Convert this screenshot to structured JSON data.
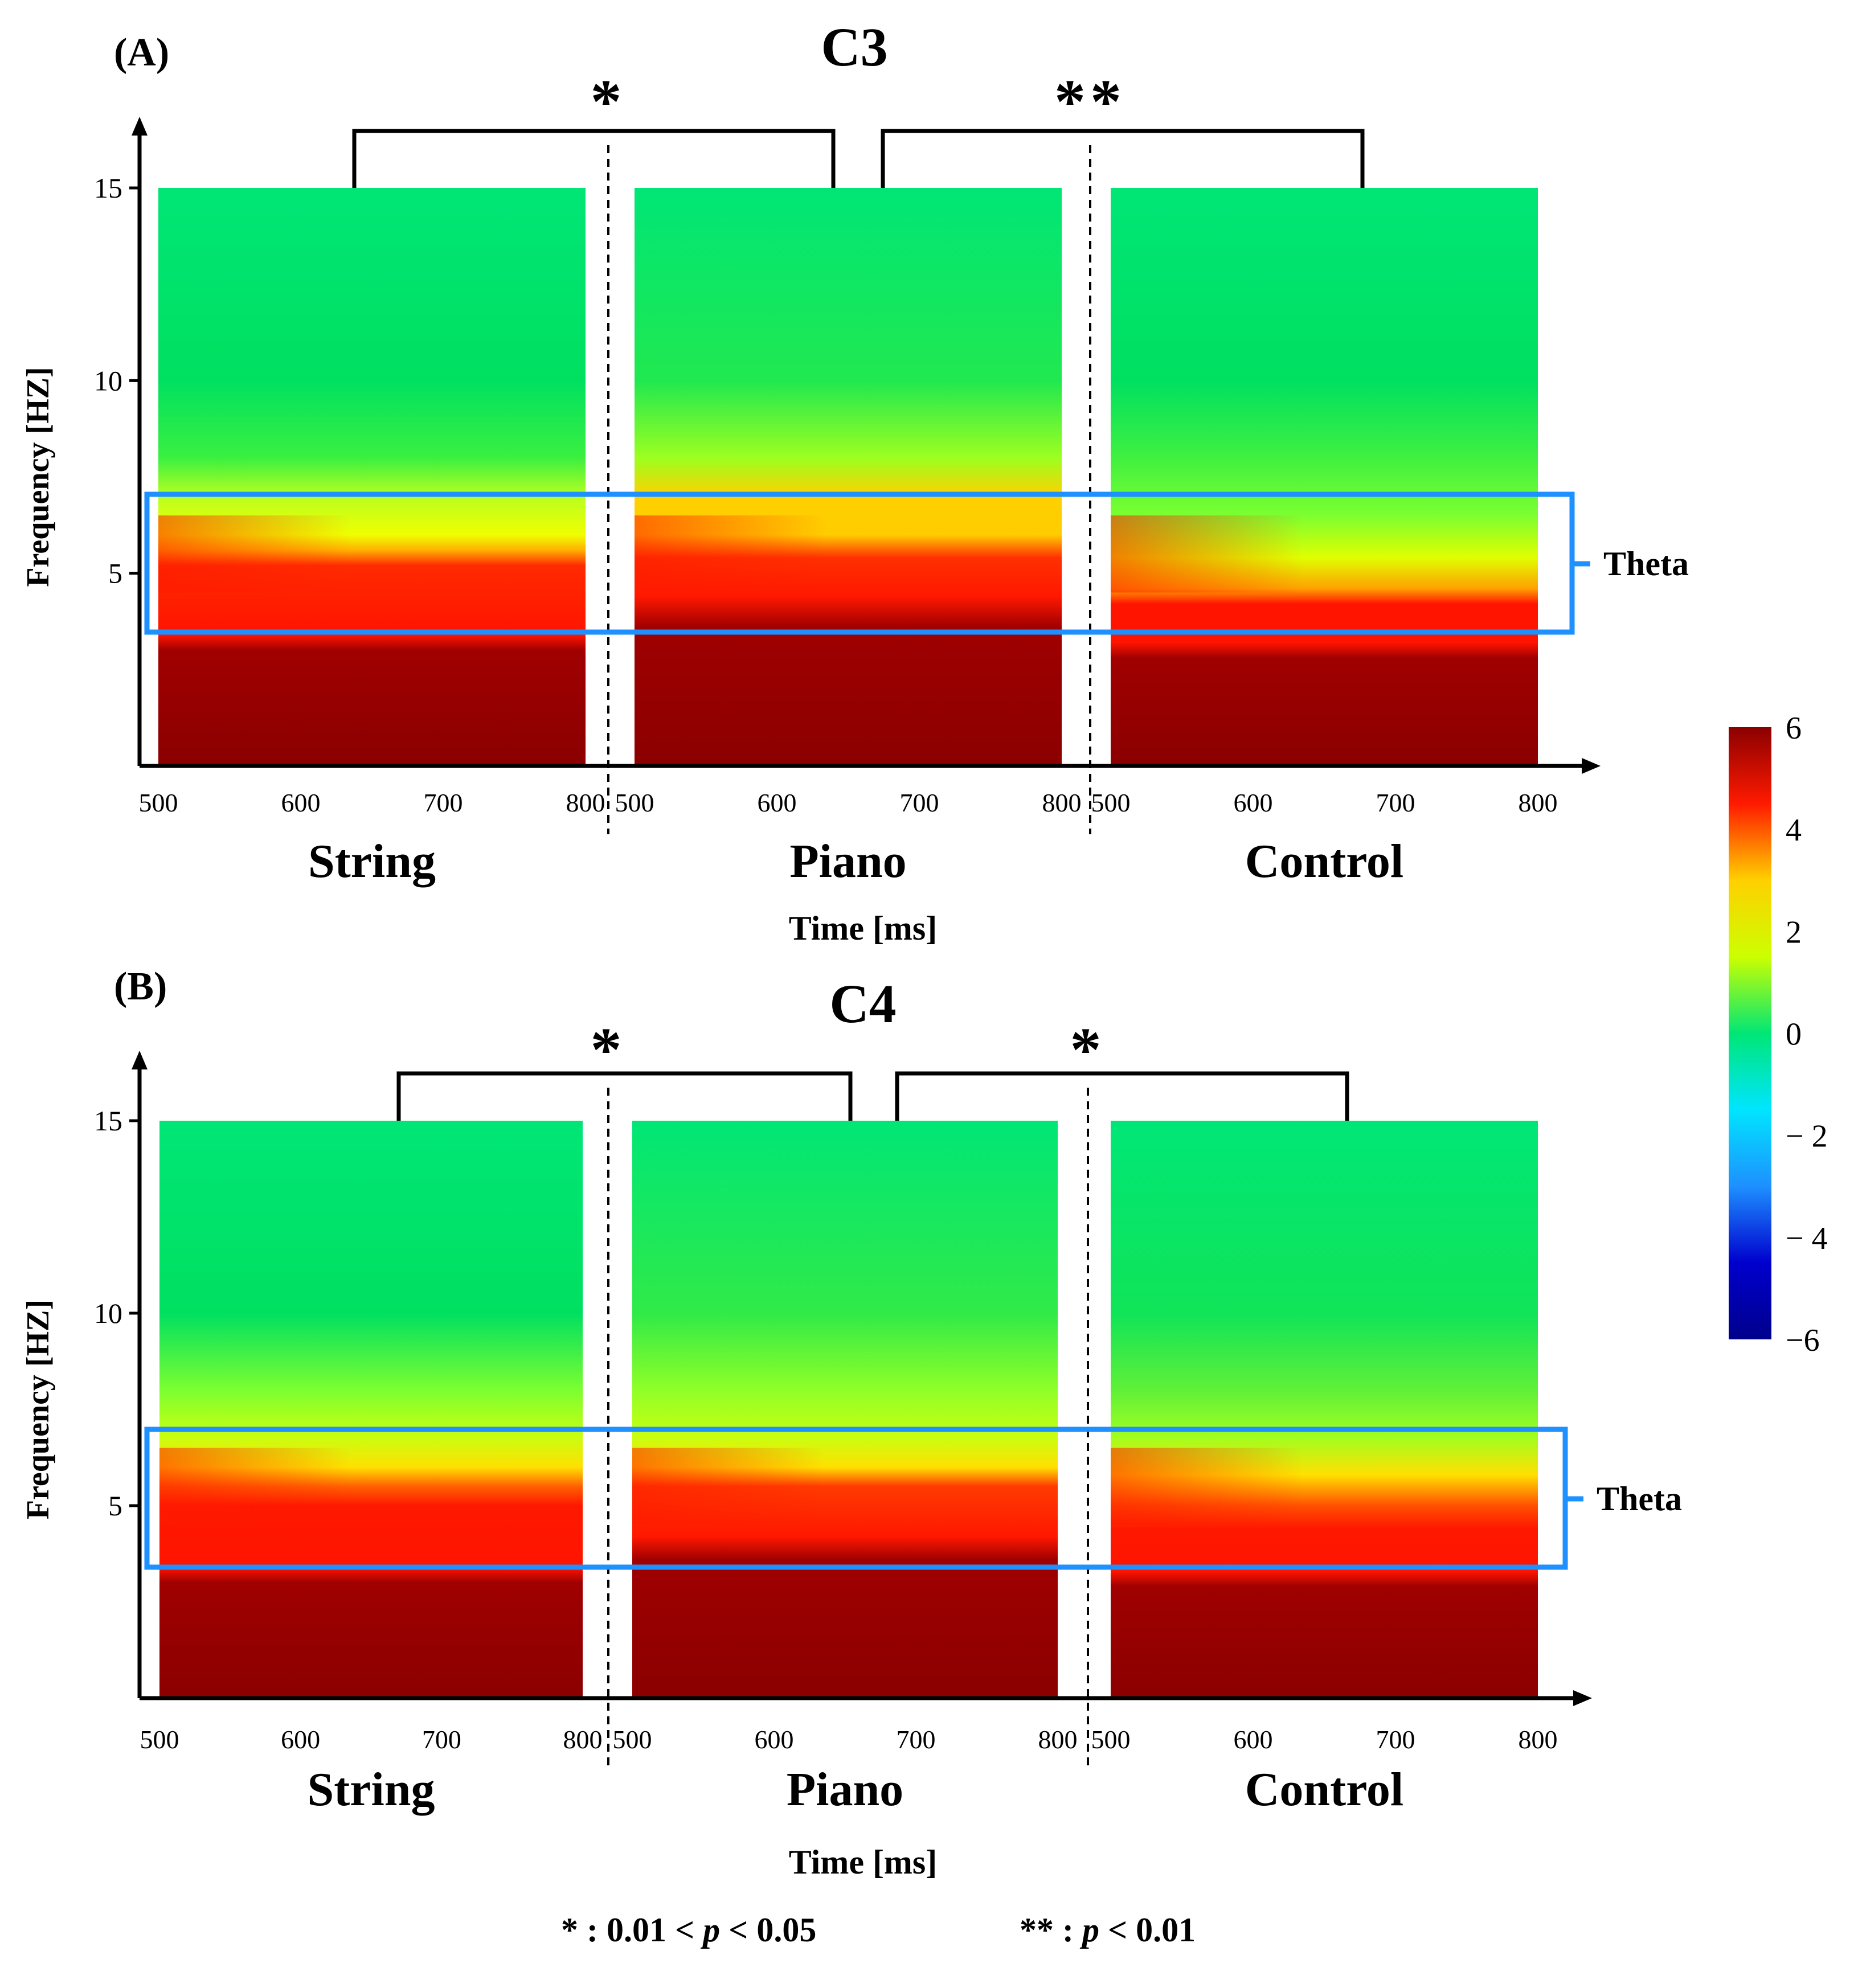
{
  "chart_data": [
    {
      "type": "heatmap",
      "panel_label": "(A)",
      "title": "C3",
      "xlabel": "Time [ms]",
      "ylabel": "Frequency [HZ]",
      "x_ticks": [
        500,
        600,
        700,
        800
      ],
      "y_ticks": [
        5,
        10,
        15
      ],
      "ylim": [
        0,
        15
      ],
      "xlim": [
        500,
        800
      ],
      "band": {
        "label": "Theta",
        "range": [
          3.5,
          7
        ]
      },
      "conditions": [
        {
          "name": "String",
          "description": "power highest (>6) below ~3 Hz; red (~4-5) up to ~5.5 Hz at 500 ms narrowing to ~3.5 Hz at 800 ms; yellow-green (~2) at 5-7 Hz; green (~0.5) above 8 Hz"
        },
        {
          "name": "Piano",
          "description": "power >6 below ~4 Hz; red band extends to ~5 Hz across time; orange-yellow hotspot near 500 ms at 6-7 Hz; green above 9 Hz"
        },
        {
          "name": "Control",
          "description": "power >6 below ~3 Hz; red band up to ~4.5 Hz at 500 ms narrowing to ~3.5 Hz; yellow-green at 5-7 Hz; green above 8 Hz"
        }
      ],
      "comparisons": [
        {
          "pair": [
            "String",
            "Piano"
          ],
          "significance": "*"
        },
        {
          "pair": [
            "Piano",
            "Control"
          ],
          "significance": "**"
        }
      ]
    },
    {
      "type": "heatmap",
      "panel_label": "(B)",
      "title": "C4",
      "xlabel": "Time [ms]",
      "ylabel": "Frequency [HZ]",
      "x_ticks": [
        500,
        600,
        700,
        800
      ],
      "y_ticks": [
        5,
        10,
        15
      ],
      "ylim": [
        0,
        15
      ],
      "xlim": [
        500,
        800
      ],
      "band": {
        "label": "Theta",
        "range": [
          3.5,
          7
        ]
      },
      "conditions": [
        {
          "name": "String",
          "description": "power >6 below ~3 Hz; red up to ~5.5 Hz at 500 ms narrowing to ~3.5 Hz; yellow-green at 5-8 Hz; green above 9 Hz"
        },
        {
          "name": "Piano",
          "description": "power >6 below ~3.5 Hz; red band up to ~5.5 Hz at 500 ms narrowing to ~4 Hz at 800 ms; green above 9 Hz"
        },
        {
          "name": "Control",
          "description": "power >6 below ~3 Hz; red up to ~5 Hz at 500 ms narrowing to ~3.5 Hz; yellow-green at 5-8 Hz; green above 9 Hz"
        }
      ],
      "comparisons": [
        {
          "pair": [
            "String",
            "Piano"
          ],
          "significance": "*"
        },
        {
          "pair": [
            "Piano",
            "Control"
          ],
          "significance": "*"
        }
      ]
    }
  ],
  "colorbar": {
    "ticks": [
      "6",
      "4",
      "2",
      "0",
      "− 2",
      "− 4",
      "−6"
    ],
    "range": [
      -6,
      6
    ],
    "colors": [
      "#8b0000",
      "#ff1a00",
      "#ffd000",
      "#ccff00",
      "#00e676",
      "#00e5ff",
      "#1e90ff",
      "#0000cd",
      "#00008b"
    ]
  },
  "legend": {
    "single_symbol": "*",
    "single_text": " : 0.01 < ",
    "single_p": "p",
    "single_tail": " < 0.05",
    "double_symbol": "**",
    "double_text": " : ",
    "double_p": "p",
    "double_tail": " < 0.01"
  },
  "colors": {
    "band_box": "#1e90ff",
    "axis": "#000000"
  }
}
